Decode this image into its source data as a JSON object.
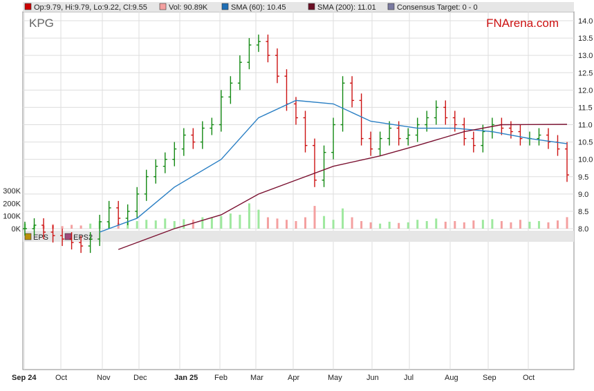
{
  "chart_data": {
    "type": "ohlc",
    "ticker": "KPG",
    "brand": "FNArena.com",
    "legend": [
      {
        "label": "Op:9.79, Hi:9.79, Lo:9.22, Cl:9.55",
        "color": "#cc0000"
      },
      {
        "label": "Vol: 90.89K",
        "color": "#f4a0a0"
      },
      {
        "label": "SMA (60): 10.45",
        "color": "#1f6fb5"
      },
      {
        "label": "SMA (200): 11.01",
        "color": "#6b0f25"
      },
      {
        "label": "Consensus Target: 0 - 0",
        "color": "#7a7aa0"
      }
    ],
    "lower_legend": [
      {
        "label": "EPS",
        "color": "#b8900a"
      },
      {
        "label": "EPS2",
        "color": "#a04a7a"
      }
    ],
    "x_ticks": [
      "Sep 24",
      "Oct",
      "Nov",
      "Dec",
      "Jan 25",
      "Feb",
      "Mar",
      "Apr",
      "May",
      "Jun",
      "Jul",
      "Aug",
      "Sep",
      "Oct"
    ],
    "y_ticks": [
      8.0,
      8.5,
      9.0,
      9.5,
      10.0,
      10.5,
      11.0,
      11.5,
      12.0,
      12.5,
      13.0,
      13.5,
      14.0
    ],
    "vol_ticks": [
      "0K",
      "100K",
      "200K",
      "300K"
    ],
    "ylim": [
      8.0,
      14.0
    ],
    "closes": [
      8.0,
      8.1,
      7.9,
      7.8,
      7.7,
      7.6,
      7.5,
      7.7,
      8.2,
      8.6,
      8.3,
      8.5,
      9.0,
      9.5,
      9.8,
      10.0,
      10.3,
      10.7,
      10.5,
      10.9,
      11.0,
      11.8,
      12.2,
      12.8,
      13.3,
      13.4,
      13.0,
      12.4,
      11.6,
      11.2,
      10.4,
      9.4,
      10.2,
      11.0,
      12.2,
      11.7,
      10.6,
      10.3,
      10.6,
      10.9,
      10.6,
      10.7,
      11.0,
      11.2,
      11.5,
      11.2,
      11.0,
      10.6,
      10.4,
      10.8,
      11.0,
      10.9,
      10.8,
      10.6,
      10.6,
      10.7,
      10.5,
      10.3,
      9.55
    ],
    "volumes_k": [
      40,
      30,
      25,
      35,
      20,
      30,
      25,
      40,
      60,
      50,
      45,
      55,
      60,
      70,
      65,
      80,
      60,
      75,
      70,
      90,
      85,
      100,
      120,
      110,
      200,
      150,
      90,
      80,
      70,
      60,
      90,
      180,
      100,
      70,
      160,
      90,
      60,
      50,
      40,
      55,
      45,
      50,
      70,
      60,
      80,
      55,
      60,
      50,
      65,
      70,
      75,
      60,
      50,
      70,
      55,
      60,
      50,
      65,
      91
    ],
    "sma60": [
      [
        8,
        7.9
      ],
      [
        12,
        8.3
      ],
      [
        16,
        9.2
      ],
      [
        21,
        10.0
      ],
      [
        25,
        11.2
      ],
      [
        29,
        11.7
      ],
      [
        33,
        11.6
      ],
      [
        37,
        11.1
      ],
      [
        42,
        10.9
      ],
      [
        46,
        10.9
      ],
      [
        50,
        10.8
      ],
      [
        54,
        10.6
      ],
      [
        58,
        10.45
      ]
    ],
    "sma200": [
      [
        10,
        7.4
      ],
      [
        16,
        8.0
      ],
      [
        21,
        8.4
      ],
      [
        25,
        9.0
      ],
      [
        29,
        9.4
      ],
      [
        33,
        9.8
      ],
      [
        38,
        10.1
      ],
      [
        42,
        10.4
      ],
      [
        47,
        10.8
      ],
      [
        51,
        11.0
      ],
      [
        58,
        11.01
      ]
    ]
  }
}
